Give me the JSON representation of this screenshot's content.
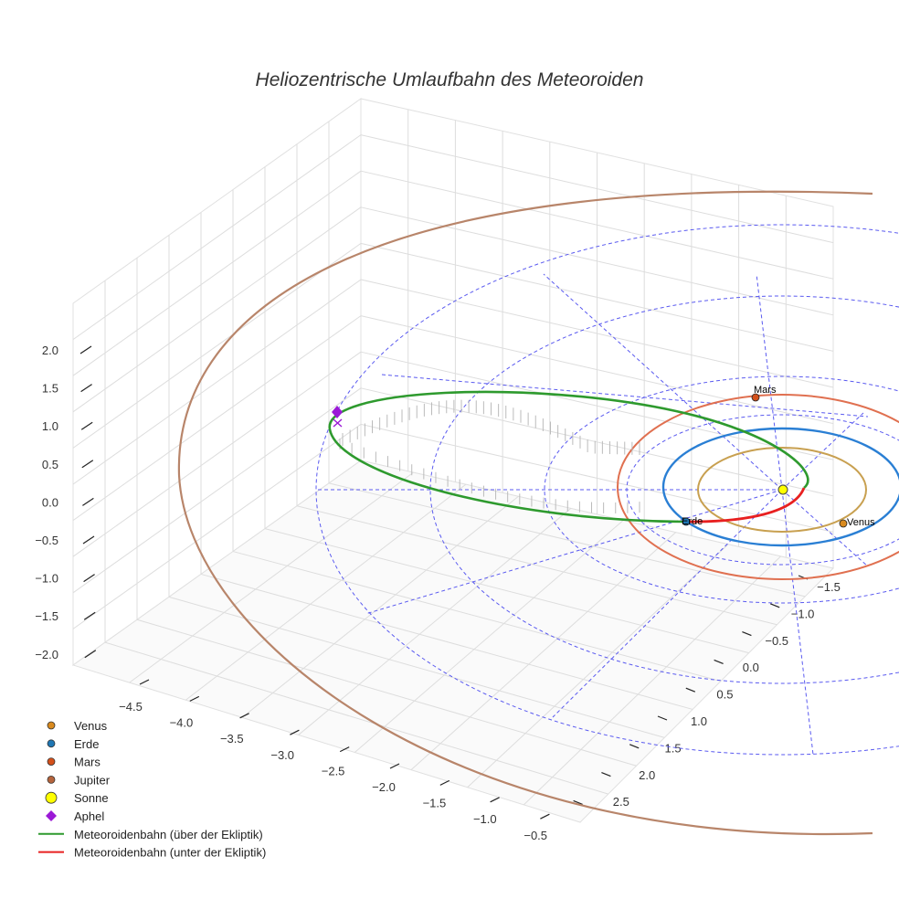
{
  "chart_data": {
    "type": "line3d",
    "title": "Heliozentrische Umlaufbahn des Meteoroiden",
    "axes": {
      "x": {
        "ticks": [
          "−4.5",
          "−4.0",
          "−3.5",
          "−3.0",
          "−2.5",
          "−2.0",
          "−1.5",
          "−1.0",
          "−0.5"
        ],
        "range": [
          -4.9,
          -0.4
        ]
      },
      "y": {
        "ticks": [
          "−1.5",
          "−1.0",
          "−0.5",
          "0.0",
          "0.5",
          "1.0",
          "1.5",
          "2.0",
          "2.5"
        ],
        "range": [
          -1.8,
          2.8
        ]
      },
      "z": {
        "ticks": [
          "2.0",
          "1.5",
          "1.0",
          "0.5",
          "0.0",
          "−0.5",
          "−1.0",
          "−1.5",
          "−2.0"
        ],
        "range": [
          -2.1,
          2.2
        ]
      }
    },
    "series": [
      {
        "name": "Venus",
        "kind": "orbit",
        "color": "#c8a050",
        "radius_au": 0.72
      },
      {
        "name": "Erde",
        "kind": "orbit",
        "color": "#2a7fd4",
        "radius_au": 1.0
      },
      {
        "name": "Mars",
        "kind": "orbit",
        "color": "#e07050",
        "radius_au": 1.52
      },
      {
        "name": "Jupiter",
        "kind": "orbit",
        "color": "#b8856a",
        "radius_au": 5.2
      },
      {
        "name": "Meteoroidenbahn (über der Ekliptik)",
        "kind": "trajectory",
        "color": "#2e9a2e"
      },
      {
        "name": "Meteoroidenbahn (unter der Ekliptik)",
        "kind": "trajectory",
        "color": "#e82020"
      }
    ],
    "points": [
      {
        "name": "Venus",
        "label": "Venus",
        "color": "#d98a1e"
      },
      {
        "name": "Erde",
        "label": "Erde",
        "color": "#1f77b4"
      },
      {
        "name": "Mars",
        "label": "Mars",
        "color": "#d4501a"
      },
      {
        "name": "Sonne",
        "label": "",
        "color": "#ffff00"
      },
      {
        "name": "Aphel",
        "label": "",
        "color": "#9b19d6"
      }
    ],
    "legend": [
      {
        "name": "Venus",
        "symbol": "circle",
        "color": "#d98a1e"
      },
      {
        "name": "Erde",
        "symbol": "circle",
        "color": "#1f77b4"
      },
      {
        "name": "Mars",
        "symbol": "circle",
        "color": "#d4501a"
      },
      {
        "name": "Jupiter",
        "symbol": "circle",
        "color": "#b5643c"
      },
      {
        "name": "Sonne",
        "symbol": "circle",
        "color": "#ffff00"
      },
      {
        "name": "Aphel",
        "symbol": "diamond",
        "color": "#9b19d6"
      },
      {
        "name": "Meteoroidenbahn (über der Ekliptik)",
        "symbol": "line",
        "color": "#2e9a2e"
      },
      {
        "name": "Meteoroidenbahn (unter der Ekliptik)",
        "symbol": "line",
        "color": "#e82020"
      }
    ],
    "legend_position": "bottom-left"
  }
}
